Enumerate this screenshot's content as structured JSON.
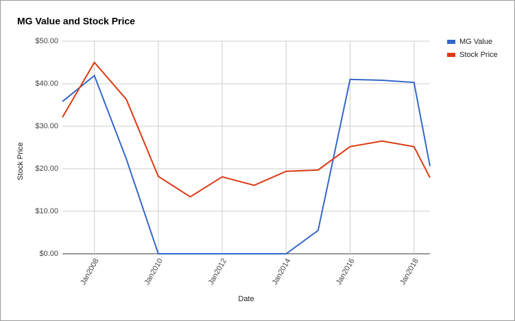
{
  "chart_data": {
    "type": "line",
    "title": "MG Value and Stock Price",
    "x_label": "Date",
    "y_label": "Stock Price",
    "x": [
      2007,
      2008,
      2009,
      2010,
      2011,
      2012,
      2013,
      2014,
      2015,
      2016,
      2017,
      2018,
      2018.5
    ],
    "series": [
      {
        "name": "MG Value",
        "color": "#3366cc",
        "values": [
          35.8,
          41.9,
          22.3,
          0,
          0,
          0,
          0,
          0,
          5.5,
          41.0,
          40.8,
          40.3,
          20.6
        ]
      },
      {
        "name": "Stock Price",
        "color": "#dc3912",
        "values": [
          32.1,
          45.0,
          36.3,
          18.2,
          13.4,
          18.1,
          16.1,
          19.4,
          19.7,
          25.2,
          26.5,
          25.2,
          17.9
        ]
      }
    ],
    "xlim": [
      2007,
      2018.5
    ],
    "xticks": [
      {
        "value": 2008,
        "label": "Jan2008"
      },
      {
        "value": 2010,
        "label": "Jan2010"
      },
      {
        "value": 2012,
        "label": "Jan2012"
      },
      {
        "value": 2014,
        "label": "Jan2014"
      },
      {
        "value": 2016,
        "label": "Jan2016"
      },
      {
        "value": 2018,
        "label": "Jan2018"
      }
    ],
    "ylim": [
      0,
      50
    ],
    "yticks": [
      {
        "value": 0,
        "label": "$0.00"
      },
      {
        "value": 10,
        "label": "$10.00"
      },
      {
        "value": 20,
        "label": "$20.00"
      },
      {
        "value": 30,
        "label": "$30.00"
      },
      {
        "value": 40,
        "label": "$40.00"
      },
      {
        "value": 50,
        "label": "$50.00"
      }
    ],
    "grid": true,
    "legend": "right"
  }
}
